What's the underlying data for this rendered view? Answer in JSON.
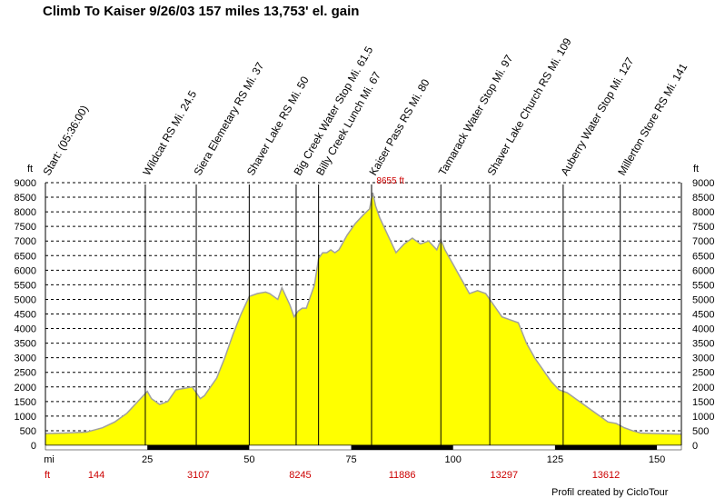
{
  "chart_data": {
    "type": "area",
    "title": "Climb To Kaiser 9/26/03 157 miles 13,753' el. gain",
    "credit": "Profil created by CicloTour",
    "y_unit": "ft",
    "x_unit": "mi",
    "cum_unit": "ft",
    "xlim": [
      0,
      156
    ],
    "ylim": [
      0,
      9000
    ],
    "x_ticks": [
      25,
      50,
      75,
      100,
      125,
      150
    ],
    "y_ticks": [
      0,
      500,
      1000,
      1500,
      2000,
      2500,
      3000,
      3500,
      4000,
      4500,
      5000,
      5500,
      6000,
      6500,
      7000,
      7500,
      8000,
      8500,
      9000
    ],
    "grid": true,
    "fill_color": "#ffff00",
    "line_color": "#a0a0a0",
    "max_label": "8655 ft",
    "max_point": [
      80.3,
      8655
    ],
    "profile": {
      "x": [
        0,
        5,
        10,
        14,
        17,
        20,
        22,
        24,
        25,
        26,
        28,
        30,
        32,
        34,
        36,
        37,
        38,
        39,
        40,
        42,
        44,
        46,
        48,
        50,
        52,
        54,
        55,
        57,
        58,
        60,
        61,
        62,
        63,
        64,
        66,
        67,
        68,
        69,
        70,
        71,
        72,
        74,
        76,
        78,
        79.5,
        80.3,
        81,
        82,
        84,
        86,
        88,
        90,
        92,
        94,
        96,
        97,
        98,
        100,
        102,
        104,
        106,
        108,
        110,
        112,
        114,
        116,
        118,
        120,
        122,
        124,
        126,
        128,
        130,
        132,
        134,
        136,
        138,
        140,
        142,
        144,
        146,
        150,
        156
      ],
      "y": [
        400,
        420,
        450,
        600,
        800,
        1100,
        1400,
        1700,
        1850,
        1600,
        1400,
        1500,
        1900,
        1950,
        2000,
        1800,
        1600,
        1700,
        1900,
        2300,
        3000,
        3800,
        4500,
        5100,
        5200,
        5250,
        5200,
        5000,
        5400,
        4800,
        4400,
        4600,
        4700,
        4700,
        5500,
        6400,
        6600,
        6600,
        6700,
        6600,
        6700,
        7200,
        7600,
        7900,
        8100,
        8655,
        8200,
        7800,
        7200,
        6600,
        6900,
        7100,
        6900,
        7000,
        6700,
        7050,
        6700,
        6200,
        5700,
        5200,
        5300,
        5200,
        4800,
        4400,
        4300,
        4200,
        3500,
        3000,
        2600,
        2200,
        1900,
        1800,
        1600,
        1400,
        1200,
        1000,
        800,
        750,
        600,
        500,
        420,
        400,
        380
      ]
    },
    "markers": [
      {
        "x": 0,
        "label": "Start: (05:36:00)"
      },
      {
        "x": 24.5,
        "label": "Wildcat RS Mi. 24.5"
      },
      {
        "x": 37,
        "label": "Siera Elemetary RS Mi. 37"
      },
      {
        "x": 50,
        "label": "Shaver Lake RS Mi. 50"
      },
      {
        "x": 61.5,
        "label": "Big Creek Water Stop Mi. 61.5"
      },
      {
        "x": 67,
        "label": "Billy Creek Lunch Mi. 67"
      },
      {
        "x": 80,
        "label": "Kaiser Pass RS Mi. 80"
      },
      {
        "x": 97,
        "label": "Tamarack Water Stop Mi. 97"
      },
      {
        "x": 109,
        "label": "Shaver Lake Church RS Mi. 109"
      },
      {
        "x": 127,
        "label": "Auberry Water Stop Mi. 127"
      },
      {
        "x": 141,
        "label": "Millerton Store RS Mi. 141"
      }
    ],
    "cumulative_gain": [
      {
        "x": 12.5,
        "value": "144"
      },
      {
        "x": 37.5,
        "value": "3107"
      },
      {
        "x": 62.5,
        "value": "8245"
      },
      {
        "x": 87.5,
        "value": "11886"
      },
      {
        "x": 112.5,
        "value": "13297"
      },
      {
        "x": 137.5,
        "value": "13612"
      }
    ],
    "bottom_bar_segments": [
      [
        25,
        50
      ],
      [
        75,
        100
      ],
      [
        125,
        150
      ]
    ]
  }
}
